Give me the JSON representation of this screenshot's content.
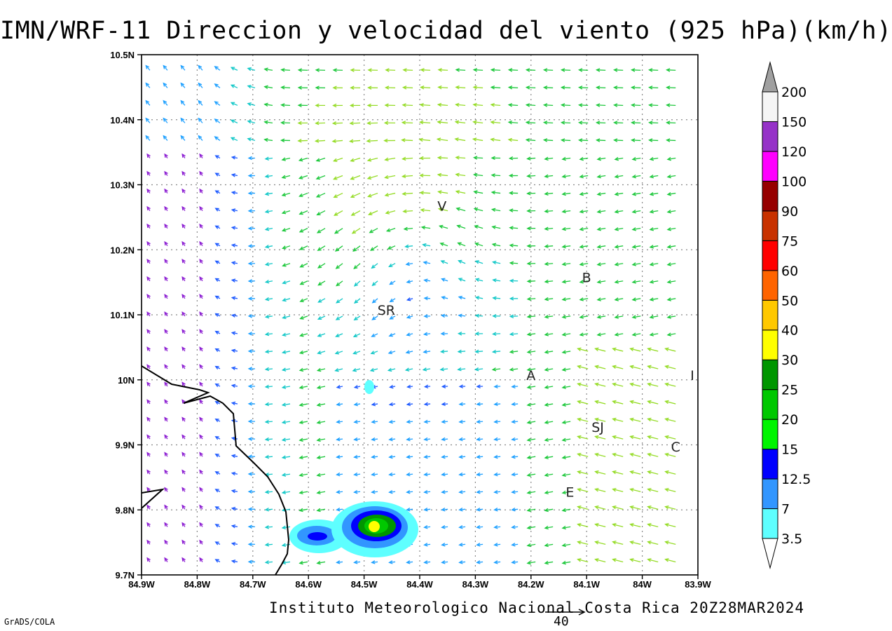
{
  "title": "IMN/WRF-11 Direccion y velocidad del viento (925 hPa)(km/h)",
  "credit": "Instituto Meteorologico Nacional Costa Rica 20Z28MAR2024",
  "software": "GrADS/COLA",
  "reference_vector": {
    "value": "40"
  },
  "map": {
    "lat_labels": [
      "9.7N",
      "9.8N",
      "9.9N",
      "10N",
      "10.1N",
      "10.2N",
      "10.3N",
      "10.4N",
      "10.5N"
    ],
    "lon_labels": [
      "84.9W",
      "84.8W",
      "84.7W",
      "84.6W",
      "84.5W",
      "84.4W",
      "84.3W",
      "84.2W",
      "84.1W",
      "84W",
      "83.9W"
    ],
    "lon_range": [
      -84.9,
      -83.9
    ],
    "lat_range": [
      9.7,
      10.5
    ],
    "grid": "dotted",
    "place_labels": [
      {
        "label": "V",
        "lon": -84.36,
        "lat": 10.26
      },
      {
        "label": "B",
        "lon": -84.1,
        "lat": 10.15
      },
      {
        "label": "SR",
        "lon": -84.46,
        "lat": 10.1
      },
      {
        "label": "A",
        "lon": -84.2,
        "lat": 10.0
      },
      {
        "label": "I",
        "lon": -83.91,
        "lat": 10.0
      },
      {
        "label": "SJ",
        "lon": -84.08,
        "lat": 9.92
      },
      {
        "label": "C",
        "lon": -83.94,
        "lat": 9.89
      },
      {
        "label": "E",
        "lon": -84.13,
        "lat": 9.82
      }
    ]
  },
  "colorbar": {
    "labels": [
      "3.5",
      "7",
      "12.5",
      "15",
      "20",
      "25",
      "30",
      "40",
      "50",
      "60",
      "75",
      "90",
      "100",
      "120",
      "150",
      "200"
    ],
    "colors": [
      "#5effff",
      "#3296ff",
      "#0000ff",
      "#00f500",
      "#00c800",
      "#009600",
      "#ffff00",
      "#ffc800",
      "#ff6400",
      "#ff0000",
      "#c83200",
      "#960000",
      "#ff00ff",
      "#9632c8",
      "#f5f5f5",
      "#a0a0a0"
    ]
  },
  "speed_colors": {
    "purple": "#8c1ed2",
    "blue": "#1e5aff",
    "lightblue": "#1ea0ff",
    "cyan": "#14c8c8",
    "green": "#1ec83c",
    "yellowgreen": "#96dc28",
    "yellow": "#e6d228",
    "orange": "#e69628",
    "darkorange": "#e66428",
    "red": "#e62828"
  }
}
